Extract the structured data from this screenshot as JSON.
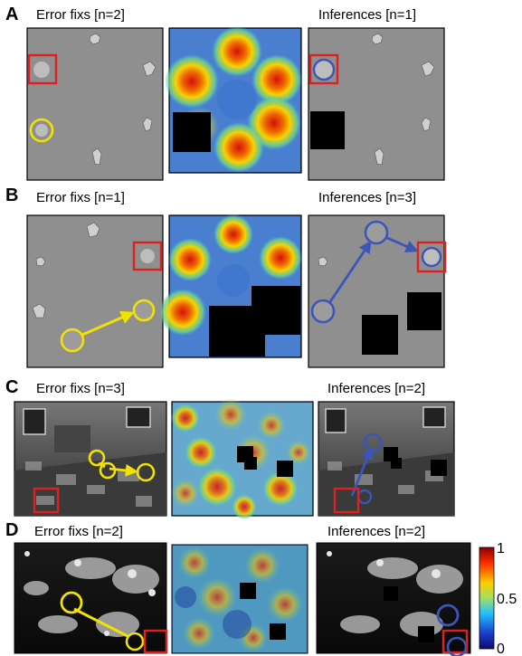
{
  "panels": [
    {
      "letter": "A",
      "left_caption": "Error fixs [n=2]",
      "right_caption": "Inferences [n=1]"
    },
    {
      "letter": "B",
      "left_caption": "Error fixs [n=1]",
      "right_caption": "Inferences [n=3]"
    },
    {
      "letter": "C",
      "left_caption": "Error fixs [n=3]",
      "right_caption": "Inferences [n=2]"
    },
    {
      "letter": "D",
      "left_caption": "Error fixs [n=2]",
      "right_caption": "Inferences [n=2]"
    }
  ],
  "colorbar": {
    "ticks": [
      "1",
      "0.5",
      "0"
    ],
    "colors": [
      "#8b0000",
      "#ff2a00",
      "#ffcc00",
      "#a0e060",
      "#22c0ff",
      "#1a3ccc",
      "#0b0b70"
    ]
  },
  "marker_colors": {
    "error_fix": "#f2e200",
    "inference": "#3b55b8",
    "target": "#e02020"
  }
}
